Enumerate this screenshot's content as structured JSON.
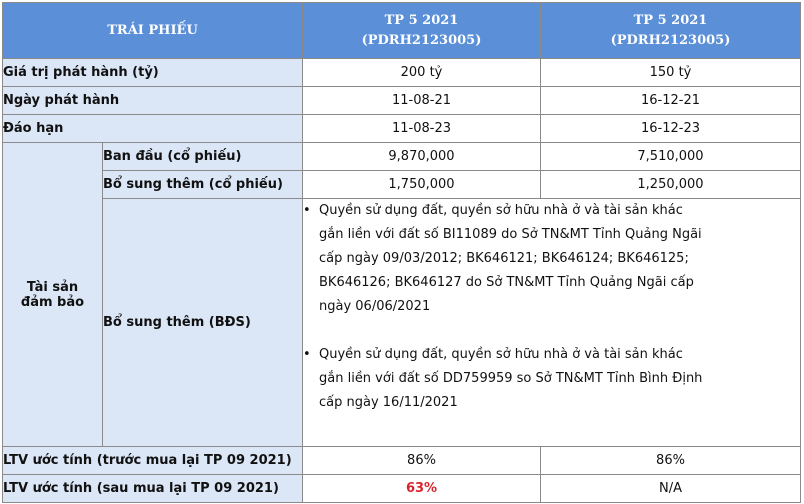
{
  "header": {
    "col0": "TRÁI PHIẾU",
    "col2_line1": "TP 5 2021",
    "col2_line2": "(PDRH2123005)",
    "col3_line1": "TP 5 2021",
    "col3_line2": "(PDRH2123005)"
  },
  "rows": {
    "value": {
      "label": "Giá trị phát hành (tỷ)",
      "v1": "200 tỷ",
      "v2": "150 tỷ"
    },
    "issue_date": {
      "label": "Ngày phát hành",
      "v1": "11-08-21",
      "v2": "16-12-21"
    },
    "maturity": {
      "label": "Đáo hạn",
      "v1": "11-08-23",
      "v2": "16-12-23"
    }
  },
  "collateral": {
    "group_label_1": "Tài sản",
    "group_label_2": "đảm bảo",
    "initial": {
      "label": "Ban đầu (cổ phiếu)",
      "v1": "9,870,000",
      "v2": "7,510,000"
    },
    "additional_shares": {
      "label": "Bổ sung thêm (cổ phiếu)",
      "v1": "1,750,000",
      "v2": "1,250,000"
    },
    "additional_realestate": {
      "label": "Bổ sung thêm (BĐS)",
      "bullet_symbol": "•",
      "item1_lines": [
        "Quyền sử dụng đất, quyền sở hữu nhà ở và tài sản khác",
        "gắn liền với đất số BI11089 do Sở TN&MT Tỉnh Quảng Ngãi",
        "cấp ngày 09/03/2012; BK646121; BK646124; BK646125;",
        "BK646126; BK646127 do Sở TN&MT Tỉnh Quảng Ngãi cấp",
        "ngày 06/06/2021"
      ],
      "item2_lines": [
        "Quyền sử dụng đất, quyền sở hữu nhà ở và tài sản khác",
        "gắn liền với đất số DD759959 so Sở TN&MT Tỉnh Bình Định",
        "cấp ngày 16/11/2021"
      ]
    }
  },
  "ltv": {
    "before": {
      "label": "LTV ước tính (trước mua lại TP 09 2021)",
      "v1": "86%",
      "v2": "86%"
    },
    "after": {
      "label": "LTV ước tính (sau mua lại TP 09 2021)",
      "v1": "63%",
      "v2": "N/A"
    }
  },
  "colors": {
    "header_bg": "#5b8fd8",
    "label_bg": "#dbe6f6",
    "highlight": "#d8262e"
  }
}
